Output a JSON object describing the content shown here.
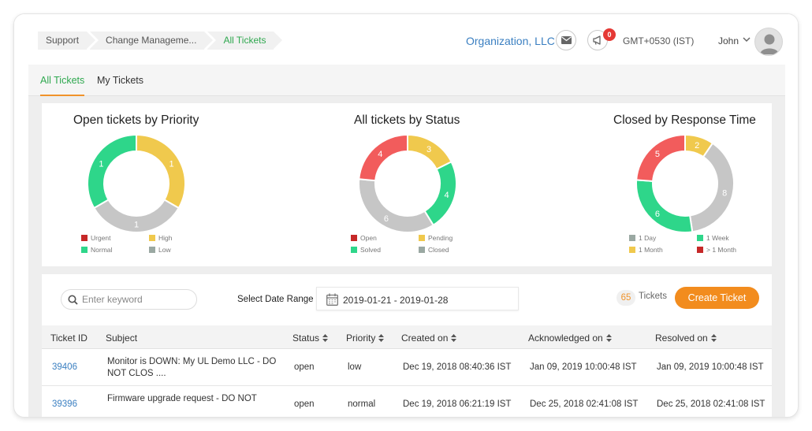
{
  "breadcrumb": [
    "Support",
    "Change Manageme...",
    "All Tickets"
  ],
  "header": {
    "organization": "Organization, LLC",
    "notification_count": "0",
    "timezone": "GMT+0530 (IST)",
    "user_name": "John"
  },
  "tabs": [
    "All Tickets",
    "My Tickets"
  ],
  "chart_data": [
    {
      "type": "pie",
      "donut": true,
      "title": "Open tickets by Priority",
      "slices": [
        {
          "label": "Urgent",
          "value": 0,
          "color": "#c62828",
          "shown": ""
        },
        {
          "label": "High",
          "value": 1,
          "color": "#f0c94d",
          "shown": "1"
        },
        {
          "label": "Low",
          "value": 1,
          "color": "#c6c6c6",
          "shown": "1"
        },
        {
          "label": "Normal",
          "value": 1,
          "color": "#2ed68a",
          "shown": "1"
        }
      ],
      "legend": [
        "Urgent",
        "High",
        "Normal",
        "Low"
      ]
    },
    {
      "type": "pie",
      "donut": true,
      "title": "All tickets by Status",
      "slices": [
        {
          "label": "Pending",
          "value": 3,
          "color": "#f0c94d",
          "shown": "3"
        },
        {
          "label": "Solved",
          "value": 4,
          "color": "#2ed68a",
          "shown": "4"
        },
        {
          "label": "Closed",
          "value": 6,
          "color": "#c6c6c6",
          "shown": "6"
        },
        {
          "label": "Open",
          "value": 4,
          "color": "#f25c5c",
          "shown": "4"
        }
      ],
      "legend": [
        "Open",
        "Pending",
        "Solved",
        "Closed"
      ]
    },
    {
      "type": "pie",
      "donut": true,
      "title": "Closed by Response Time",
      "slices": [
        {
          "label": "1 Month",
          "value": 2,
          "color": "#f0c94d",
          "shown": "2"
        },
        {
          "label": "1 Day",
          "value": 8,
          "color": "#c6c6c6",
          "shown": "8"
        },
        {
          "label": "1 Week",
          "value": 6,
          "color": "#2ed68a",
          "shown": "6"
        },
        {
          "label": "> 1 Month",
          "value": 5,
          "color": "#f25c5c",
          "shown": "5"
        }
      ],
      "legend": [
        "1 Day",
        "1 Week",
        "1 Month",
        "> 1 Month"
      ]
    }
  ],
  "legend_colors": {
    "Urgent": "#c62828",
    "High": "#f0c94d",
    "Normal": "#2ed68a",
    "Low": "#9aa8a2",
    "Open": "#c62828",
    "Pending": "#f0c94d",
    "Solved": "#2ed68a",
    "Closed": "#9aa8a2",
    "1 Day": "#9aa8a2",
    "1 Week": "#2ed68a",
    "1 Month": "#f0c94d",
    "> 1 Month": "#c62828"
  },
  "toolbar": {
    "search_placeholder": "Enter keyword",
    "date_range_label": "Select Date Range",
    "date_range_value": "2019-01-21 - 2019-01-28",
    "ticket_count": "65",
    "ticket_count_label": "Tickets",
    "create_button": "Create Ticket"
  },
  "table": {
    "columns": [
      "Ticket ID",
      "Subject",
      "Status",
      "Priority",
      "Created on",
      "Acknowledged on",
      "Resolved on"
    ],
    "rows": [
      {
        "id": "39406",
        "subject": "Monitor is DOWN: My UL Demo LLC - DO NOT CLOS ....",
        "status": "open",
        "priority": "low",
        "created": "Dec 19, 2018 08:40:36 IST",
        "acknowledged": "Jan 09, 2019 10:00:48 IST",
        "resolved": "Jan 09, 2019 10:00:48 IST"
      },
      {
        "id": "39396",
        "subject": "Firmware upgrade request - DO NOT",
        "status": "open",
        "priority": "normal",
        "created": "Dec 19, 2018 06:21:19 IST",
        "acknowledged": "Dec 25, 2018 02:41:08 IST",
        "resolved": "Dec 25, 2018 02:41:08 IST"
      }
    ]
  }
}
